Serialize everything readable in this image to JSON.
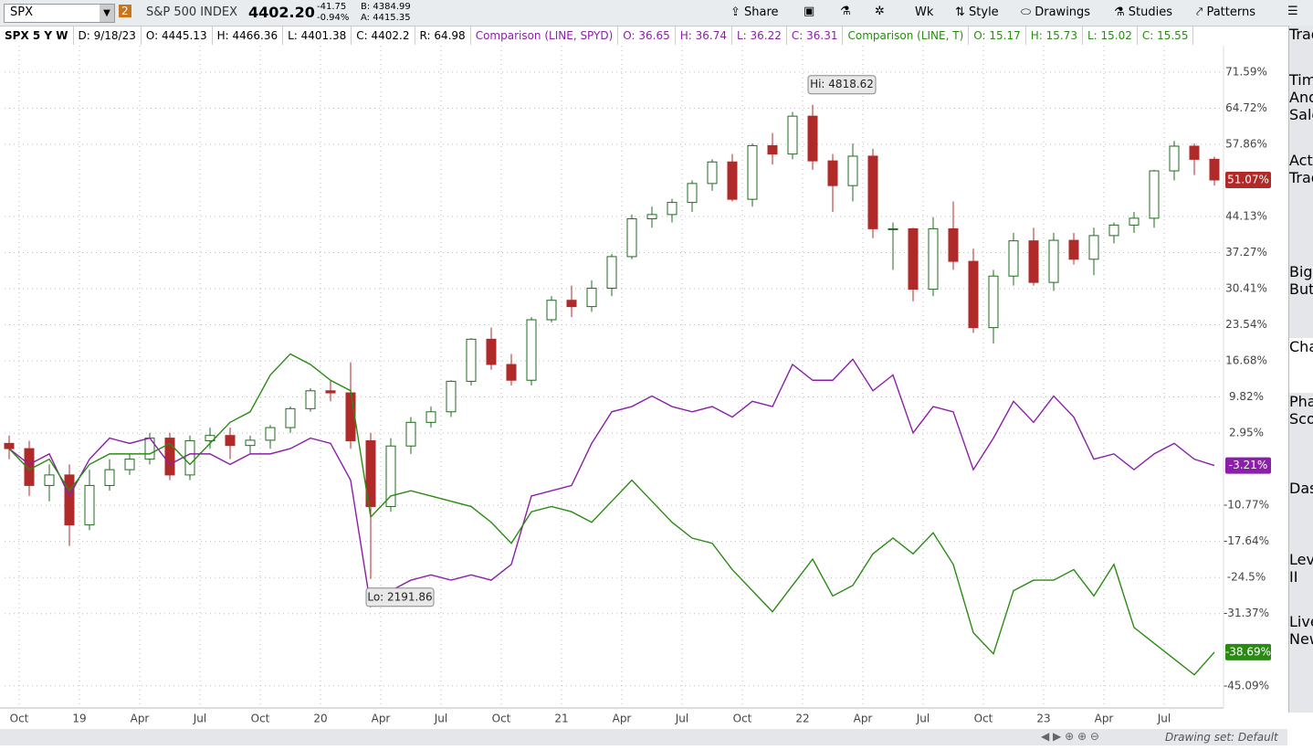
{
  "toolbar": {
    "symbol": "SPX",
    "link": "2",
    "description": "S&P 500 INDEX",
    "last": "4402.20",
    "change": "-41.75",
    "change_pct": "-0.94%",
    "bid": "B: 4384.99",
    "ask": "A: 4415.35",
    "buttons": [
      "Share",
      "Wk",
      "Style",
      "Drawings",
      "Studies",
      "Patterns"
    ]
  },
  "info_bar": {
    "main": "SPX 5 Y W",
    "items": [
      "D: 9/18/23",
      "O: 4445.13",
      "H: 4466.36",
      "L: 4401.38",
      "C: 4402.2",
      "R: 64.98"
    ],
    "comp1": "Comparison (LINE, SPYD)",
    "comp1_items": [
      "O: 36.65",
      "H: 36.74",
      "L: 36.22",
      "C: 36.31"
    ],
    "comp2": "Comparison (LINE, T)",
    "comp2_items": [
      "O: 15.17",
      "H: 15.73",
      "L: 15.02",
      "C: 15.55"
    ]
  },
  "side_tabs": [
    "Trade",
    "Times And Sales",
    "Active Trader",
    "Big Buttons",
    "Chart",
    "Phase Scores",
    "Dashboard",
    "Level II",
    "Live News"
  ],
  "footer": {
    "drawing_set": "Drawing set: Default"
  },
  "chart_data": {
    "type": "candlestick",
    "categories": [
      null,
      "Oct",
      null,
      null,
      "19",
      null,
      null,
      "Apr",
      null,
      null,
      "Jul",
      null,
      null,
      "Oct",
      null,
      null,
      "20",
      null,
      null,
      "Apr",
      null,
      null,
      "Jul",
      null,
      null,
      "Oct",
      null,
      null,
      "21",
      null,
      null,
      "Apr",
      null,
      null,
      "Jul",
      null,
      null,
      "Oct",
      null,
      null,
      "22",
      null,
      null,
      "Apr",
      null,
      null,
      "Jul",
      null,
      null,
      "Oct",
      null,
      null,
      "23",
      null,
      null,
      "Apr",
      null,
      null,
      "Jul",
      null,
      null
    ],
    "ohlc": {
      "color_up": "#1e6b1e",
      "color_down": "#b02a2a",
      "last_label": "51.07%",
      "open": [
        1,
        0,
        -7,
        -5,
        -14.5,
        -7,
        -4,
        -2,
        2,
        -5,
        1.5,
        2.5,
        0.6,
        1.6,
        4,
        7.6,
        11,
        10.6,
        1.5,
        -11,
        0.5,
        5,
        7,
        12.8,
        20.8,
        16,
        13,
        24.5,
        28.2,
        27,
        30.5,
        36.5,
        43.7,
        44.5,
        46.8,
        50.4,
        54.5,
        47.4,
        57.6,
        56,
        63.2,
        54.7,
        50,
        55.6,
        41.8,
        41.8,
        30.3,
        41.8,
        35.6,
        23,
        32.8,
        39.5,
        31.6,
        39.6,
        36,
        40.5,
        42.5,
        43.8,
        52.8,
        57.5,
        55
      ],
      "high": [
        2.5,
        1.5,
        -3,
        -3,
        -4,
        -2,
        -1,
        3,
        3,
        2.5,
        4,
        4,
        2.5,
        4.5,
        8,
        11.5,
        13,
        16.4,
        3,
        2,
        6,
        8,
        13,
        21,
        23,
        18,
        25,
        29,
        31,
        32,
        37,
        44.5,
        46,
        47.5,
        51,
        55,
        56,
        58,
        60,
        64,
        65.36,
        56,
        58,
        57,
        43,
        42,
        44,
        47,
        38,
        34,
        41,
        42,
        41,
        41,
        42,
        43,
        45,
        53,
        58.5,
        58,
        55.5
      ],
      "low": [
        -2,
        -9,
        -10,
        -18.5,
        -15.5,
        -8,
        -5,
        -3,
        -6,
        -6,
        0,
        -2,
        -1,
        0,
        3,
        7,
        9,
        0,
        -24.78,
        -12,
        -1,
        4,
        6,
        12,
        15,
        12,
        12,
        24,
        25,
        26,
        29,
        36,
        42,
        43,
        45,
        49,
        47,
        46,
        54,
        55,
        53,
        45,
        47,
        40,
        34,
        28,
        29,
        34,
        22,
        20,
        31,
        31,
        30,
        35,
        33,
        39,
        41,
        42,
        51,
        52,
        50
      ],
      "close": [
        0,
        -7,
        -5,
        -14.5,
        -7,
        -4,
        -2,
        2,
        -5,
        1.5,
        2.5,
        0.6,
        1.6,
        4,
        7.6,
        11,
        10.6,
        1.5,
        -11,
        0.5,
        5,
        7,
        12.8,
        20.8,
        16,
        13,
        24.5,
        28.2,
        27,
        30.5,
        36.5,
        43.7,
        44.5,
        46.8,
        50.4,
        54.5,
        47.4,
        57.6,
        56,
        63.2,
        54.7,
        50,
        55.6,
        41.8,
        41.8,
        30.3,
        41.8,
        35.6,
        23,
        32.8,
        39.5,
        31.6,
        39.6,
        36,
        40.5,
        42.5,
        43.8,
        52.8,
        57.5,
        55,
        51.07
      ]
    },
    "hi_label": "Hi: 4818.62",
    "lo_label": "Lo: 2191.86",
    "series": [
      {
        "color": "#8b1fa9",
        "last_label": "-3.21%",
        "values": [
          0,
          -3,
          -1,
          -9,
          -2,
          2,
          1,
          2,
          -3,
          -1,
          -1,
          -3,
          -1,
          -1,
          0,
          2,
          1,
          -6,
          -30,
          -27,
          -25,
          -24,
          -25,
          -24,
          -25,
          -22,
          -9,
          -8,
          -7,
          1,
          7,
          8,
          10,
          8,
          7,
          8,
          6,
          9,
          8,
          16,
          13,
          13,
          17,
          11,
          14,
          3,
          8,
          7,
          -4,
          2,
          9,
          5,
          10,
          6,
          -2,
          -1,
          -4,
          -1,
          1,
          -2,
          -3.21
        ]
      },
      {
        "color": "#2a8a14",
        "last_label": "-38.69%",
        "values": [
          0,
          -4,
          -2,
          -8,
          -3,
          -1,
          -1,
          -1,
          1,
          -3,
          1,
          5,
          7,
          14,
          18,
          16,
          13,
          11,
          -13,
          -9,
          -8,
          -9,
          -10,
          -11,
          -14,
          -18,
          -12,
          -11,
          -12,
          -14,
          -10,
          -6,
          -10,
          -14,
          -17,
          -18,
          -23,
          -27,
          -31,
          -26,
          -21,
          -28,
          -26,
          -20,
          -17,
          -20,
          -16,
          -22,
          -35,
          -39,
          -27,
          -25,
          -25,
          -23,
          -28,
          -22,
          -34,
          -37,
          -40,
          -43,
          -38.69
        ]
      }
    ],
    "ylim": [
      -49.3,
      76.6
    ],
    "yticks": [
      {
        "value": 71.59,
        "label": "71.59%"
      },
      {
        "value": 64.72,
        "label": "64.72%"
      },
      {
        "value": 57.86,
        "label": "57.86%"
      },
      {
        "value": 44.13,
        "label": "44.13%"
      },
      {
        "value": 37.27,
        "label": "37.27%"
      },
      {
        "value": 30.41,
        "label": "30.41%"
      },
      {
        "value": 23.54,
        "label": "23.54%"
      },
      {
        "value": 16.68,
        "label": "16.68%"
      },
      {
        "value": 9.82,
        "label": "9.82%"
      },
      {
        "value": 2.95,
        "label": "2.95%"
      },
      {
        "value": -10.77,
        "label": "-10.77%"
      },
      {
        "value": -17.64,
        "label": "-17.64%"
      },
      {
        "value": -24.5,
        "label": "-24.5%"
      },
      {
        "value": -31.37,
        "label": "-31.37%"
      },
      {
        "value": -45.09,
        "label": "-45.09%"
      }
    ],
    "grid": true
  }
}
